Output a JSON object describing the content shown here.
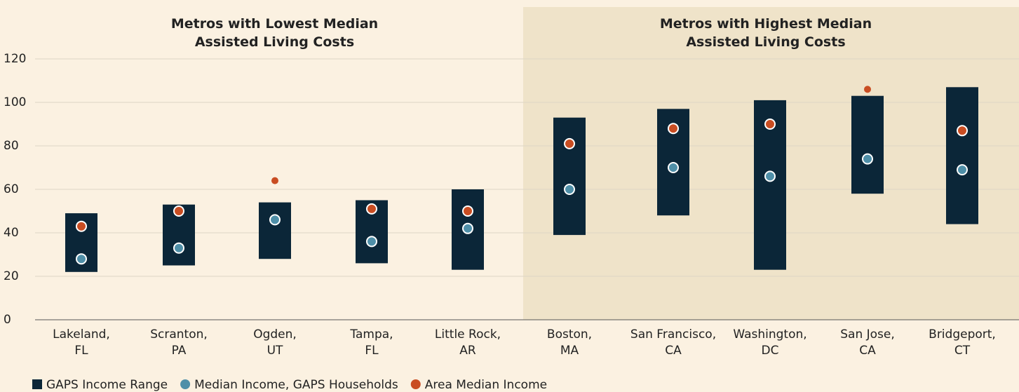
{
  "chart_data": {
    "type": "range_dot",
    "groups": [
      {
        "title": "Metros with Lowest Median\nAssisted Living Costs",
        "categories": [
          "Lakeland,\nFL",
          "Scranton,\nPA",
          "Ogden,\nUT",
          "Tampa,\nFL",
          "Little Rock,\nAR"
        ]
      },
      {
        "title": "Metros with Highest Median\nAssisted Living Costs",
        "categories": [
          "Boston,\nMA",
          "San Francisco,\nCA",
          "Washington,\nDC",
          "San Jose,\nCA",
          "Bridgeport,\nCT"
        ]
      }
    ],
    "series": [
      {
        "name": "GAPS Income Range",
        "color": "#0b2638",
        "values": [
          [
            22,
            49
          ],
          [
            25,
            53
          ],
          [
            28,
            54
          ],
          [
            26,
            55
          ],
          [
            23,
            60
          ],
          [
            39,
            93
          ],
          [
            48,
            97
          ],
          [
            23,
            101
          ],
          [
            58,
            103
          ],
          [
            44,
            107
          ]
        ]
      },
      {
        "name": "Median Income, GAPS Households",
        "color": "#4f8fa8",
        "values": [
          28,
          33,
          46,
          36,
          42,
          60,
          70,
          66,
          74,
          69
        ]
      },
      {
        "name": "Area Median Income",
        "color": "#c94d22",
        "values": [
          43,
          50,
          64,
          51,
          50,
          81,
          88,
          90,
          106,
          87
        ]
      }
    ],
    "ylim": [
      0,
      120
    ],
    "yticks": [
      0,
      20,
      40,
      60,
      80,
      100,
      120
    ],
    "grid": true
  }
}
